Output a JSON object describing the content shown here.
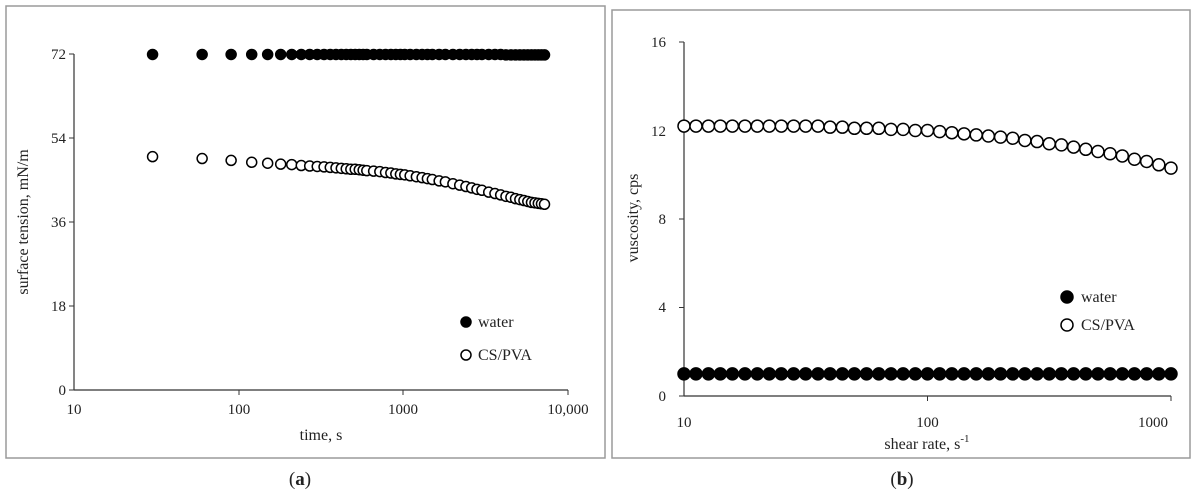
{
  "panels": [
    {
      "caption": "a",
      "chart_data": {
        "type": "scatter",
        "title": "",
        "xlabel": "time, s",
        "ylabel": "surface tension, mN/m",
        "x_scale": "log",
        "xlim": [
          10,
          10000
        ],
        "ylim": [
          0,
          72
        ],
        "x_ticks": [
          "10",
          "100",
          "1000",
          "10,000"
        ],
        "y_ticks": [
          "0",
          "18",
          "36",
          "54",
          "72"
        ],
        "grid": false,
        "legend_position": "bottom-right",
        "series": [
          {
            "name": "water",
            "marker": "filled-circle",
            "x": [
              30,
              60,
              90,
              120,
              150,
              180,
              210,
              240,
              270,
              300,
              330,
              360,
              390,
              420,
              450,
              480,
              510,
              540,
              570,
              600,
              660,
              720,
              780,
              840,
              900,
              960,
              1020,
              1100,
              1200,
              1300,
              1400,
              1500,
              1650,
              1800,
              2000,
              2200,
              2400,
              2600,
              2800,
              3000,
              3300,
              3600,
              3900,
              4200,
              4500,
              4800,
              5100,
              5400,
              5700,
              6000,
              6300,
              6600,
              6900,
              7200
            ],
            "y": [
              71.9,
              71.9,
              71.9,
              71.9,
              71.9,
              71.9,
              71.9,
              71.9,
              71.9,
              71.9,
              71.9,
              71.9,
              71.9,
              71.9,
              71.9,
              71.9,
              71.9,
              71.9,
              71.9,
              71.9,
              71.9,
              71.9,
              71.9,
              71.9,
              71.9,
              71.9,
              71.9,
              71.9,
              71.9,
              71.9,
              71.9,
              71.9,
              71.9,
              71.9,
              71.9,
              71.9,
              71.9,
              71.9,
              71.9,
              71.9,
              71.9,
              71.9,
              71.9,
              71.8,
              71.8,
              71.8,
              71.8,
              71.8,
              71.8,
              71.8,
              71.8,
              71.8,
              71.8,
              71.8
            ]
          },
          {
            "name": "CS/PVA",
            "marker": "open-circle",
            "x": [
              30,
              60,
              90,
              120,
              150,
              180,
              210,
              240,
              270,
              300,
              330,
              360,
              390,
              420,
              450,
              480,
              510,
              540,
              570,
              600,
              660,
              720,
              780,
              840,
              900,
              960,
              1020,
              1100,
              1200,
              1300,
              1400,
              1500,
              1650,
              1800,
              2000,
              2200,
              2400,
              2600,
              2800,
              3000,
              3300,
              3600,
              3900,
              4200,
              4500,
              4800,
              5100,
              5400,
              5700,
              6000,
              6300,
              6600,
              6900,
              7200
            ],
            "y": [
              50.0,
              49.6,
              49.2,
              48.8,
              48.6,
              48.4,
              48.3,
              48.1,
              48.0,
              47.9,
              47.8,
              47.7,
              47.6,
              47.5,
              47.4,
              47.3,
              47.3,
              47.2,
              47.1,
              47.0,
              46.9,
              46.8,
              46.6,
              46.5,
              46.3,
              46.2,
              46.1,
              45.9,
              45.7,
              45.5,
              45.3,
              45.1,
              44.8,
              44.6,
              44.2,
              43.9,
              43.6,
              43.3,
              43.0,
              42.8,
              42.4,
              42.1,
              41.8,
              41.5,
              41.3,
              41.0,
              40.8,
              40.6,
              40.4,
              40.2,
              40.1,
              40.0,
              39.9,
              39.8
            ]
          }
        ]
      }
    },
    {
      "caption": "b",
      "chart_data": {
        "type": "scatter",
        "title": "",
        "xlabel": "shear rate, s",
        "xlabel_superscript": "-1",
        "ylabel": "vuscosity, cps",
        "x_scale": "log",
        "xlim": [
          10,
          1000
        ],
        "ylim": [
          0,
          16
        ],
        "x_ticks": [
          "10",
          "100",
          "1000"
        ],
        "y_ticks": [
          "0",
          "4",
          "8",
          "12",
          "16"
        ],
        "grid": false,
        "legend_position": "bottom-right",
        "series": [
          {
            "name": "water",
            "marker": "filled-circle",
            "x": [
              10.0,
              11.2,
              12.6,
              14.1,
              15.8,
              17.8,
              20.0,
              22.4,
              25.1,
              28.2,
              31.6,
              35.5,
              39.8,
              44.7,
              50.1,
              56.2,
              63.1,
              70.8,
              79.4,
              89.1,
              100.0,
              112.2,
              125.9,
              141.3,
              158.5,
              177.8,
              199.5,
              223.9,
              251.2,
              281.8,
              316.2,
              354.8,
              398.1,
              446.7,
              501.2,
              562.3,
              631.0,
              707.9,
              794.3,
              891.3,
              1000.0
            ],
            "y": [
              1.0,
              1.0,
              1.0,
              1.0,
              1.0,
              1.0,
              1.0,
              1.0,
              1.0,
              1.0,
              1.0,
              1.0,
              1.0,
              1.0,
              1.0,
              1.0,
              1.0,
              1.0,
              1.0,
              1.0,
              1.0,
              1.0,
              1.0,
              1.0,
              1.0,
              1.0,
              1.0,
              1.0,
              1.0,
              1.0,
              1.0,
              1.0,
              1.0,
              1.0,
              1.0,
              1.0,
              1.0,
              1.0,
              1.0,
              1.0,
              1.0
            ]
          },
          {
            "name": "CS/PVA",
            "marker": "open-circle",
            "x": [
              10.0,
              11.2,
              12.6,
              14.1,
              15.8,
              17.8,
              20.0,
              22.4,
              25.1,
              28.2,
              31.6,
              35.5,
              39.8,
              44.7,
              50.1,
              56.2,
              63.1,
              70.8,
              79.4,
              89.1,
              100.0,
              112.2,
              125.9,
              141.3,
              158.5,
              177.8,
              199.5,
              223.9,
              251.2,
              281.8,
              316.2,
              354.8,
              398.1,
              446.7,
              501.2,
              562.3,
              631.0,
              707.9,
              794.3,
              891.3,
              1000.0
            ],
            "y": [
              12.2,
              12.2,
              12.2,
              12.2,
              12.2,
              12.2,
              12.2,
              12.2,
              12.2,
              12.2,
              12.2,
              12.2,
              12.15,
              12.15,
              12.1,
              12.1,
              12.1,
              12.05,
              12.05,
              12.0,
              12.0,
              11.95,
              11.9,
              11.85,
              11.8,
              11.75,
              11.7,
              11.65,
              11.55,
              11.5,
              11.4,
              11.35,
              11.25,
              11.15,
              11.05,
              10.95,
              10.85,
              10.7,
              10.6,
              10.45,
              10.3
            ]
          }
        ]
      }
    }
  ]
}
